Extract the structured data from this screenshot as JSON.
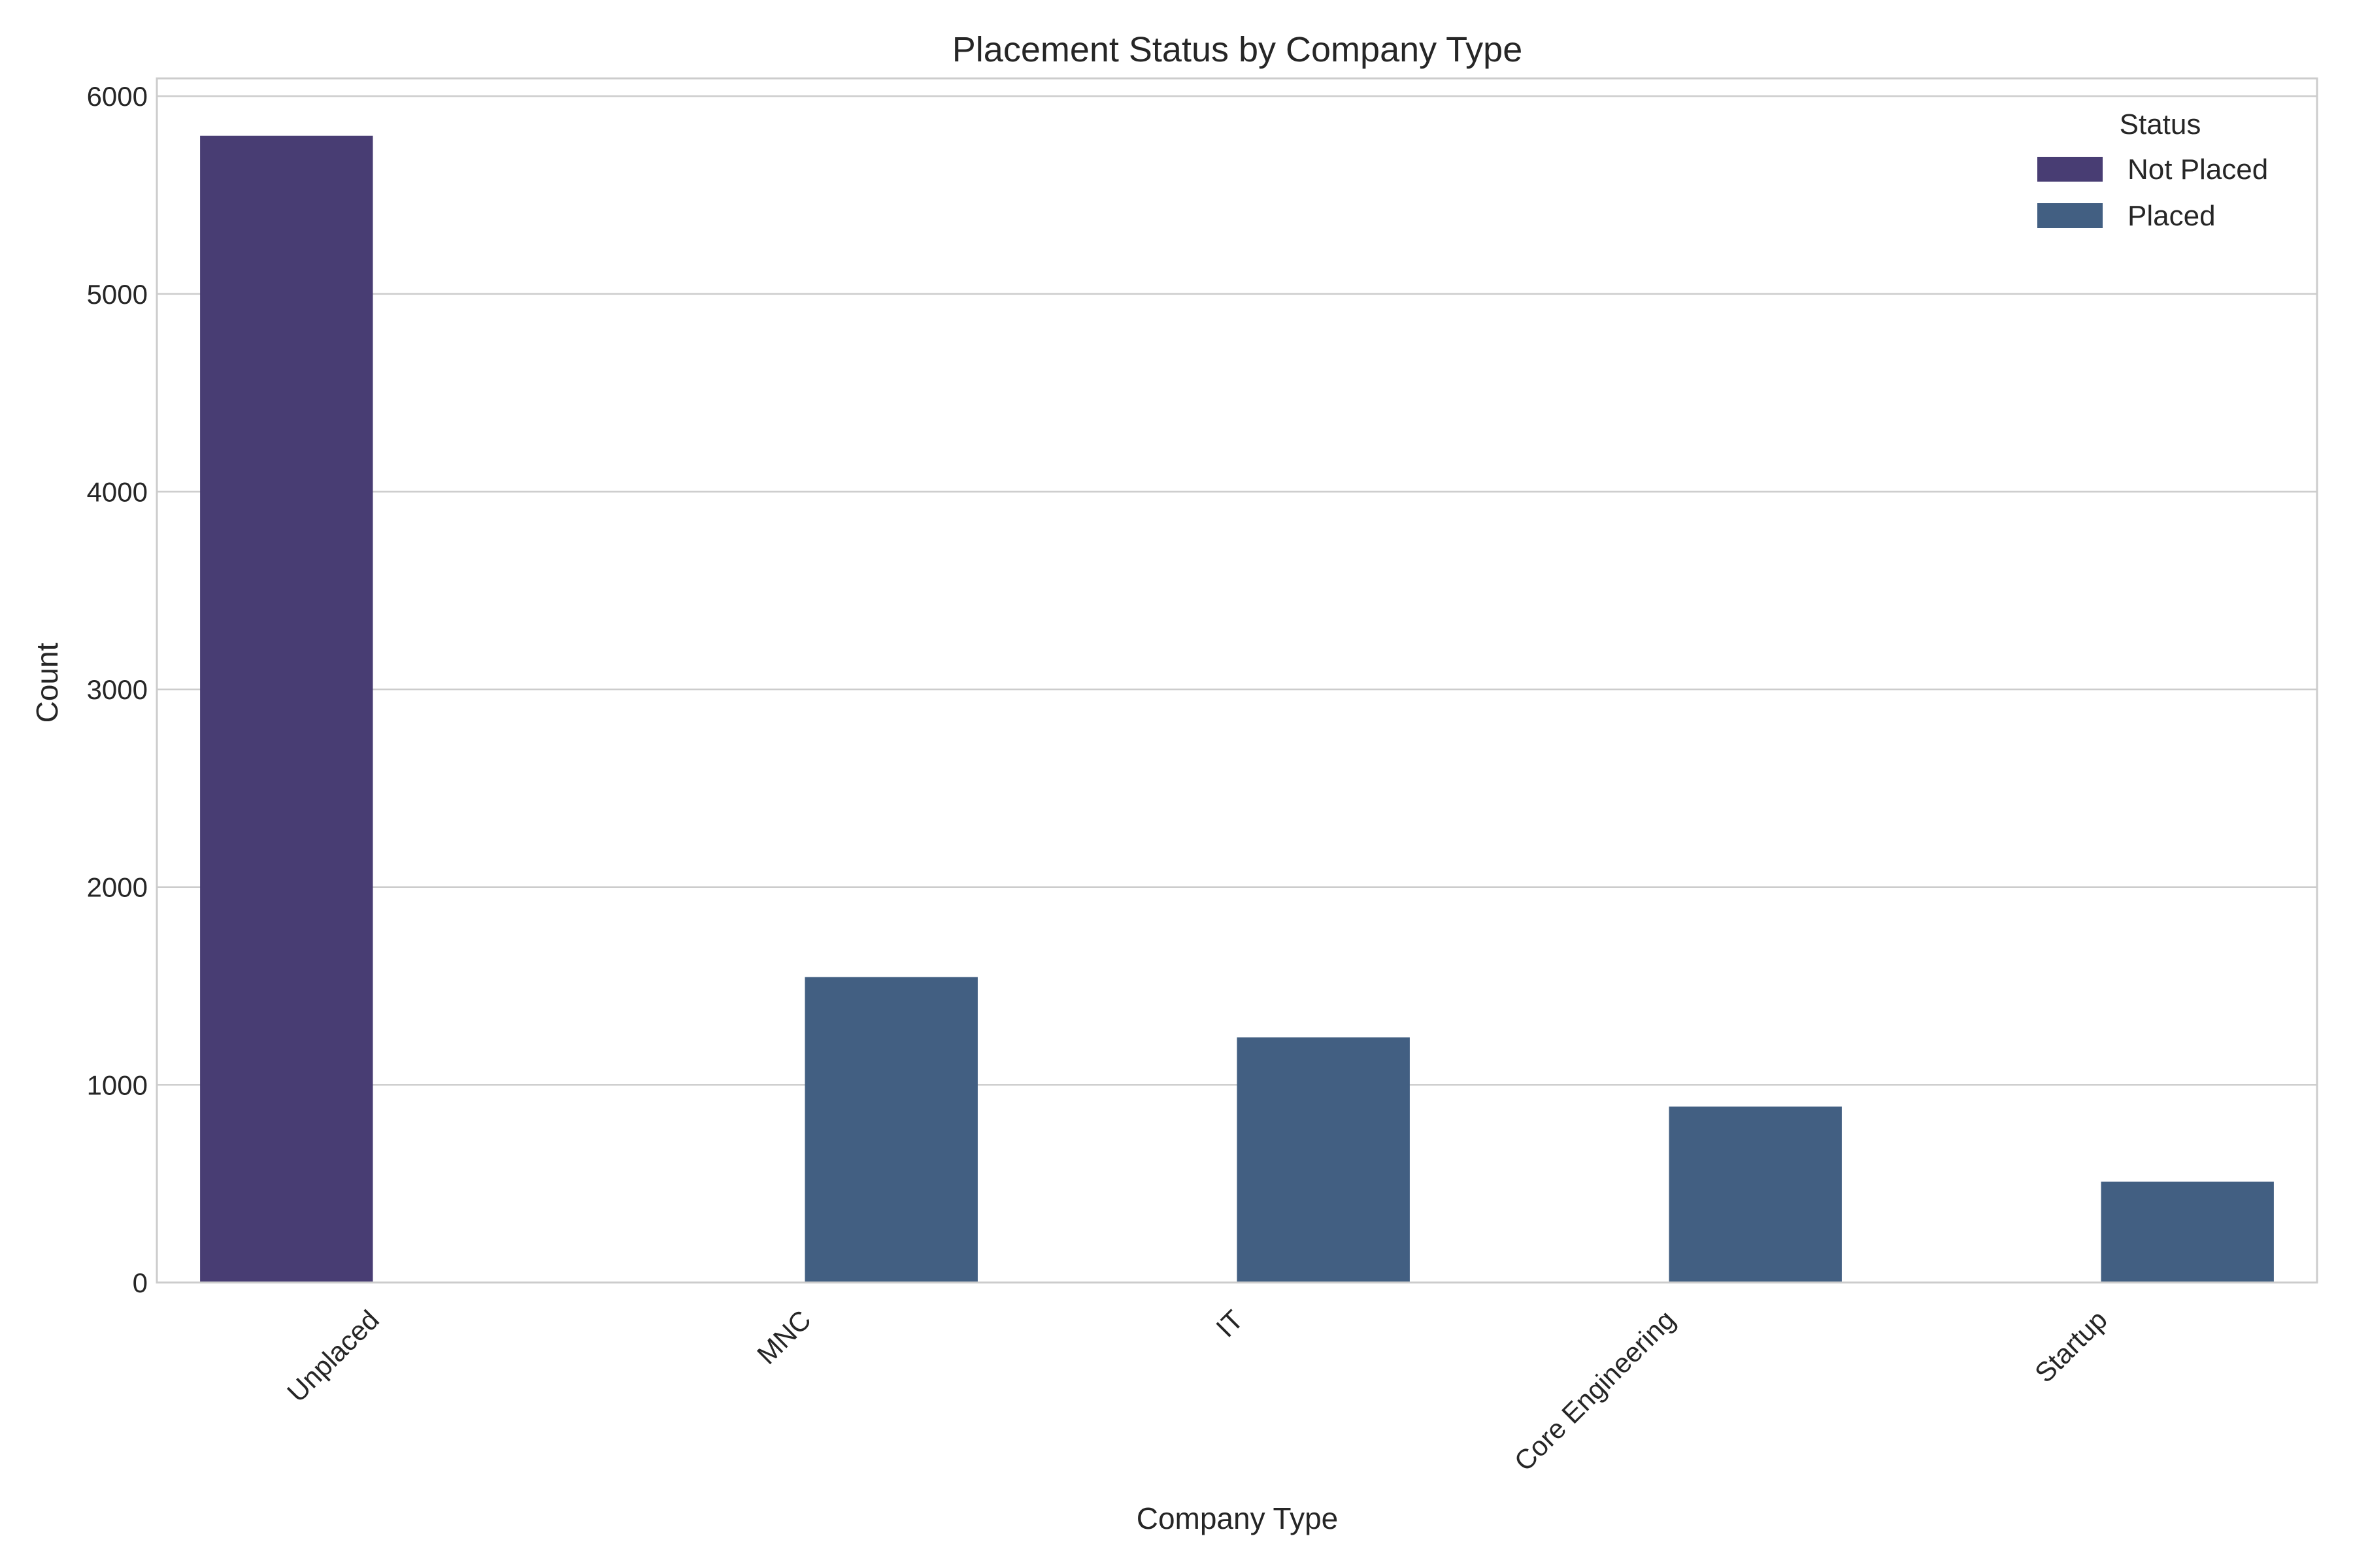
{
  "chart_data": {
    "type": "bar",
    "title": "Placement Status by Company Type",
    "xlabel": "Company Type",
    "ylabel": "Count",
    "categories": [
      "Unplaced",
      "MNC",
      "IT",
      "Core Engineering",
      "Startup"
    ],
    "series": [
      {
        "name": "Not Placed",
        "color": "#483d73",
        "values": [
          5800,
          0,
          0,
          0,
          0
        ]
      },
      {
        "name": "Placed",
        "color": "#425f82",
        "values": [
          0,
          1545,
          1240,
          890,
          510
        ]
      }
    ],
    "ylim": [
      0,
      6090
    ],
    "yticks": [
      0,
      1000,
      2000,
      3000,
      4000,
      5000,
      6000
    ],
    "grid": true,
    "legend": {
      "title": "Status",
      "position": "top-right"
    }
  }
}
